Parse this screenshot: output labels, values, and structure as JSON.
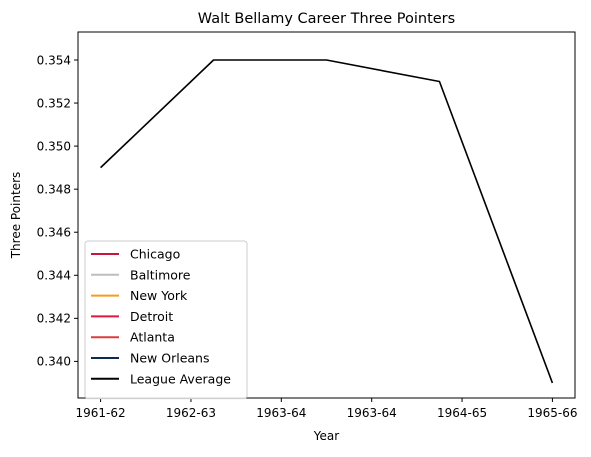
{
  "chart_data": {
    "type": "line",
    "title": "Walt Bellamy Career Three Pointers",
    "xlabel": "Year",
    "ylabel": "Three Pointers",
    "x": [
      "1961-62",
      "1962-63",
      "1963-64",
      "1963-64",
      "1964-65",
      "1965-66"
    ],
    "ylim": [
      0.3383,
      0.3553
    ],
    "yticks": [
      "0.340",
      "0.342",
      "0.344",
      "0.346",
      "0.348",
      "0.350",
      "0.352",
      "0.354"
    ],
    "grid": false,
    "legend_position": "lower-left",
    "legend": [
      {
        "name": "Chicago",
        "color": "#C4163F"
      },
      {
        "name": "Baltimore",
        "color": "#BEBEBE"
      },
      {
        "name": "New York",
        "color": "#F59E18"
      },
      {
        "name": "Detroit",
        "color": "#E0173F"
      },
      {
        "name": "Atlanta",
        "color": "#E03A3E"
      },
      {
        "name": "New Orleans",
        "color": "#0C2A52"
      },
      {
        "name": "League Average",
        "color": "#000000"
      }
    ],
    "series": [
      {
        "name": "League Average",
        "color": "#000000",
        "points": [
          {
            "x": 0.0,
            "y": 0.349
          },
          {
            "x": 1.25,
            "y": 0.354
          },
          {
            "x": 2.5,
            "y": 0.354
          },
          {
            "x": 3.75,
            "y": 0.353
          },
          {
            "x": 5.0,
            "y": 0.339
          }
        ]
      }
    ]
  }
}
